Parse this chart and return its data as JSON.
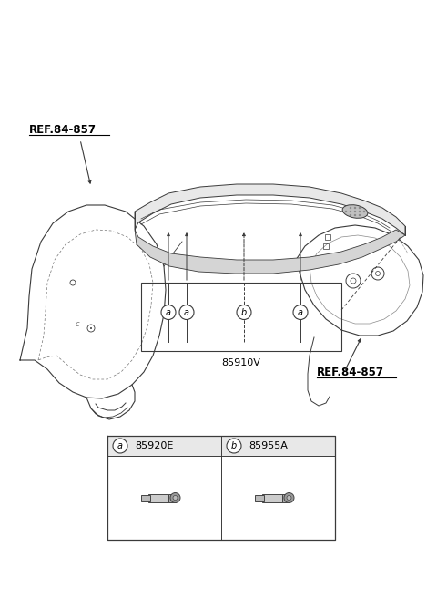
{
  "bg_color": "#ffffff",
  "line_color": "#3a3a3a",
  "ref_color": "#000000",
  "part_label_color": "#000000",
  "parts": [
    {
      "id": "a",
      "code": "85920E"
    },
    {
      "id": "b",
      "code": "85955A"
    }
  ],
  "main_part_code": "85910V",
  "ref_label": "REF.84-857"
}
